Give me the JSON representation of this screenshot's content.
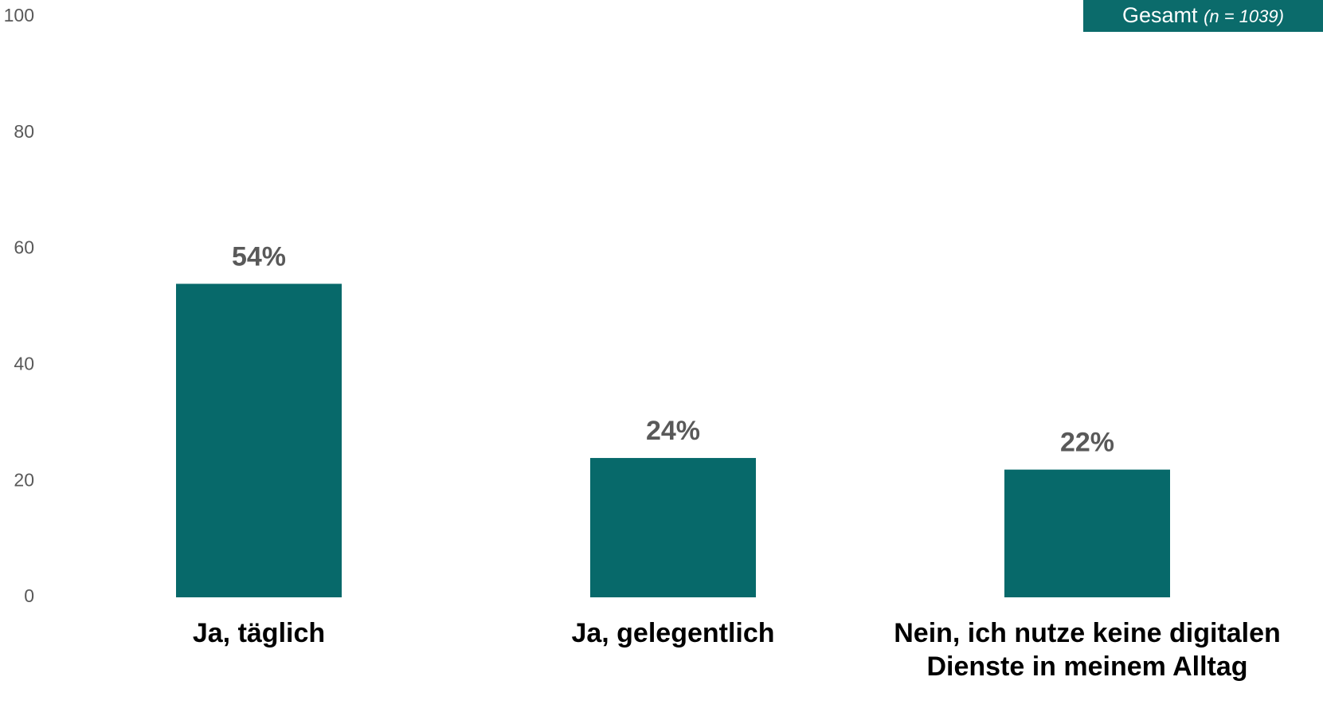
{
  "chart_data": {
    "type": "bar",
    "categories": [
      "Ja, täglich",
      "Ja, gelegentlich",
      "Nein, ich nutze keine digitalen Dienste in meinem Alltag"
    ],
    "series": [
      {
        "name": "Gesamt",
        "color": "#07696a",
        "values": [
          54,
          24,
          22
        ],
        "value_labels": [
          "54%",
          "24%",
          "22%"
        ]
      }
    ],
    "legend_note": "(n = 1039)",
    "legend_position": "upper right",
    "ylim": [
      0,
      100
    ],
    "yticks": [
      0,
      20,
      40,
      60,
      80,
      100
    ],
    "grid": false
  }
}
